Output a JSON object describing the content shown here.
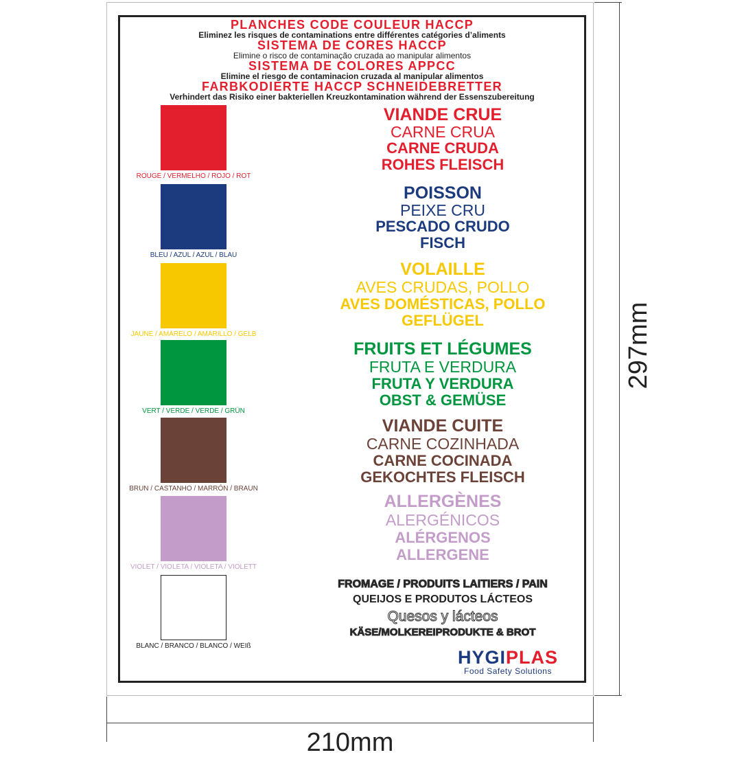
{
  "header": [
    {
      "title": "PLANCHES CODE COULEUR HACCP",
      "subtitle": "Eliminez les risques de contaminations entre différentes catégories d’aliments"
    },
    {
      "title": "SISTEMA DE CORES HACCP",
      "subtitle": "Elimine o risco de contaminação cruzada ao manipular alimentos"
    },
    {
      "title": "SISTEMA DE COLORES APPCC",
      "subtitle": "Elimine el riesgo de contaminacion cruzada al manipular alimentos"
    },
    {
      "title": "FARBKODIERTE HACCP SCHNEIDEBRETTER",
      "subtitle": "Verhindert das Risiko einer bakteriellen Kreuzkontamination während der Essenszubereitung"
    }
  ],
  "categories": [
    {
      "color": "#e31e2d",
      "label": "ROUGE / VERMELHO / ROJO / ROT",
      "lines": [
        "VIANDE CRUE",
        "CARNE CRUA",
        "CARNE CRUDA",
        "ROHES FLEISCH"
      ]
    },
    {
      "color": "#1c3a7e",
      "label": "BLEU / AZUL / AZUL / BLAU",
      "lines": [
        "POISSON",
        "PEIXE CRU",
        "PESCADO CRUDO",
        "FISCH"
      ]
    },
    {
      "color": "#f7c800",
      "label": "JAUNE / AMARELO / AMARILLO / GELB",
      "lines": [
        "VOLAILLE",
        "AVES CRUDAS, POLLO",
        "AVES DOMÉSTICAS, POLLO",
        "GEFLÜGEL"
      ]
    },
    {
      "color": "#00963f",
      "label": "VERT / VERDE / VERDE / GRÜN",
      "lines": [
        "FRUITS ET LÉGUMES",
        "FRUTA E VERDURA",
        "FRUTA Y VERDURA",
        "OBST & GEMÜSE"
      ]
    },
    {
      "color": "#6b4238",
      "label": "BRUN / CASTANHO / MARRÓN / BRAUN",
      "lines": [
        "VIANDE CUITE",
        "CARNE COZINHADA",
        "CARNE COCINADA",
        "GEKOCHTES FLEISCH"
      ]
    },
    {
      "color": "#c39cc9",
      "label": "VIOLET / VIOLETA / VIOLETA / VIOLETT",
      "lines": [
        "ALLERGÈNES",
        "ALERGÉNICOS",
        "ALÉRGENOS",
        "ALLERGENE"
      ]
    },
    {
      "color": "#ffffff",
      "label": "BLANC / BRANCO / BLANCO / WEIß",
      "lines": [
        "FROMAGE / PRODUITS LAITIERS / PAIN",
        "QUEIJOS E PRODUTOS LÁCTEOS",
        "Quesos y lácteos",
        "KÄSE/MOLKEREIPRODUKTE & BROT"
      ]
    }
  ],
  "logo": {
    "part1": "HYGI",
    "part2": "PLAS",
    "tagline": "Food Safety Solutions",
    "color1": "#1c3a7e",
    "color2": "#e31e2d"
  },
  "dimensions": {
    "height": "297mm",
    "width": "210mm"
  }
}
